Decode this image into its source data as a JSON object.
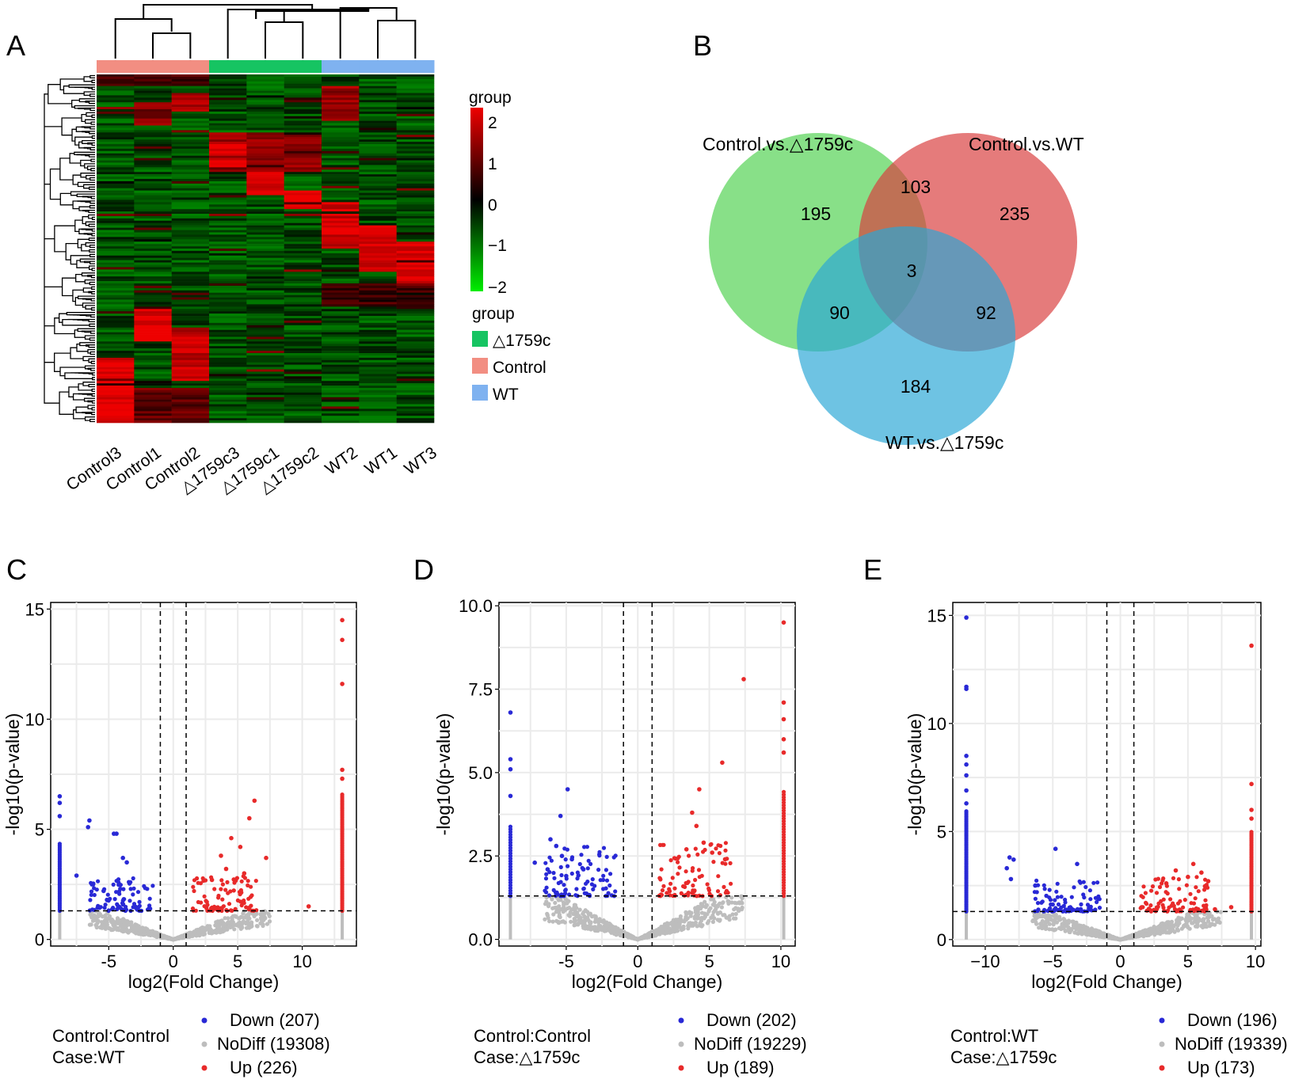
{
  "panel_labels": [
    "A",
    "B",
    "C",
    "D",
    "E"
  ],
  "chart_data": [
    {
      "panel": "A",
      "type": "heatmap",
      "samples": [
        "Control3",
        "Control1",
        "Control2",
        "△1759c3",
        "△1759c1",
        "△1759c2",
        "WT2",
        "WT1",
        "WT3"
      ],
      "sample_groups": [
        "Control",
        "Control",
        "Control",
        "△1759c",
        "△1759c",
        "△1759c",
        "WT",
        "WT",
        "WT"
      ],
      "scale": {
        "title": "group",
        "min": -2,
        "max": 2,
        "ticks": [
          "2",
          "1",
          "0",
          "−1",
          "−2"
        ],
        "colors": [
          "#00ee00",
          "#000000",
          "#ee0000"
        ]
      },
      "legend": {
        "title": "group",
        "items": [
          {
            "label": "△1759c",
            "color": "#16c462"
          },
          {
            "label": "Control",
            "color": "#f28e82"
          },
          {
            "label": "WT",
            "color": "#7fb2f0"
          }
        ]
      }
    },
    {
      "panel": "B",
      "type": "venn",
      "sets": [
        {
          "name": "Control.vs.△1759c",
          "color": "#4fd24f"
        },
        {
          "name": "Control.vs.WT",
          "color": "#d83c3c"
        },
        {
          "name": "WT.vs.△1759c",
          "color": "#2aa6d6"
        }
      ],
      "regions": {
        "only_ctrl_d1759c": "195",
        "only_ctrl_wt": "235",
        "only_wt_d1759c": "184",
        "ctrl_d1759c_and_ctrl_wt": "103",
        "ctrl_d1759c_and_wt_d1759c": "90",
        "ctrl_wt_and_wt_d1759c": "92",
        "all_three": "3"
      }
    },
    {
      "panel": "C",
      "type": "scatter",
      "xlabel": "log2(Fold Change)",
      "ylabel": "-log10(p-value)",
      "xlim": [
        -9.5,
        14.2
      ],
      "ylim": [
        -0.3,
        15.3
      ],
      "xticks": [
        "-5",
        "0",
        "5",
        "10"
      ],
      "xtick_values": [
        -5,
        0,
        5,
        10
      ],
      "yticks": [
        "0",
        "5",
        "10",
        "15"
      ],
      "ytick_values": [
        0,
        5,
        10,
        15
      ],
      "vlines": [
        -1,
        1
      ],
      "hline": 1.3,
      "control_label": "Control:Control",
      "case_label": "Case:WT",
      "legend": [
        {
          "label": "Down (207)",
          "color": "#2929d6"
        },
        {
          "label": "NoDiff (19308)",
          "color": "#bdbdbd"
        },
        {
          "label": "Up (226)",
          "color": "#e82a2a"
        }
      ],
      "down_highlights": [
        [
          -8.8,
          6.5
        ],
        [
          -8.8,
          6.2
        ],
        [
          -8.8,
          5.6
        ],
        [
          -6.5,
          5.4
        ],
        [
          -6.6,
          5.1
        ],
        [
          -4.4,
          4.8
        ],
        [
          -4.6,
          4.8
        ],
        [
          -3.9,
          3.7
        ],
        [
          -3.6,
          3.5
        ],
        [
          -7.5,
          2.9
        ],
        [
          -6.3,
          2.5
        ],
        [
          -5.4,
          2.2
        ],
        [
          -4.1,
          2.3
        ]
      ],
      "up_highlights": [
        [
          13.1,
          14.5
        ],
        [
          13.1,
          13.6
        ],
        [
          13.1,
          11.6
        ],
        [
          13.1,
          7.7
        ],
        [
          13.1,
          7.3
        ],
        [
          6.3,
          6.3
        ],
        [
          5.9,
          5.5
        ],
        [
          4.5,
          4.6
        ],
        [
          5.2,
          4.2
        ],
        [
          3.7,
          3.8
        ],
        [
          7.2,
          3.7
        ],
        [
          4.1,
          3.2
        ],
        [
          5.5,
          3.0
        ],
        [
          10.5,
          1.5
        ],
        [
          3.0,
          2.7
        ]
      ],
      "edge_columns": {
        "down_x": -8.8,
        "up_x": 13.1,
        "down_top": 4.4,
        "up_top": 6.6
      }
    },
    {
      "panel": "D",
      "type": "scatter",
      "xlabel": "log2(Fold Change)",
      "ylabel": "-log10(p-value)",
      "xlim": [
        -9.7,
        11.0
      ],
      "ylim": [
        -0.2,
        10.1
      ],
      "xticks": [
        "-5",
        "0",
        "5",
        "10"
      ],
      "xtick_values": [
        -5,
        0,
        5,
        10
      ],
      "yticks": [
        "0.0",
        "2.5",
        "5.0",
        "7.5",
        "10.0"
      ],
      "ytick_values": [
        0,
        2.5,
        5,
        7.5,
        10
      ],
      "vlines": [
        -1,
        1
      ],
      "hline": 1.3,
      "control_label": "Control:Control",
      "case_label": "Case:△1759c",
      "legend": [
        {
          "label": "Down (202)",
          "color": "#2929d6"
        },
        {
          "label": "NoDiff (19229)",
          "color": "#bdbdbd"
        },
        {
          "label": "Up (189)",
          "color": "#e82a2a"
        }
      ],
      "down_highlights": [
        [
          -8.9,
          6.8
        ],
        [
          -8.9,
          5.4
        ],
        [
          -8.9,
          5.1
        ],
        [
          -8.9,
          4.3
        ],
        [
          -4.9,
          4.5
        ],
        [
          -5.4,
          3.7
        ],
        [
          -6.1,
          3.0
        ],
        [
          -5.7,
          2.8
        ],
        [
          -7.2,
          2.3
        ],
        [
          -5.3,
          2.5
        ],
        [
          -4.6,
          2.4
        ],
        [
          -3.8,
          2.1
        ],
        [
          -5.0,
          1.9
        ],
        [
          -6.3,
          2.1
        ]
      ],
      "up_highlights": [
        [
          10.2,
          9.5
        ],
        [
          7.4,
          7.8
        ],
        [
          10.2,
          7.1
        ],
        [
          10.2,
          6.6
        ],
        [
          10.2,
          6.0
        ],
        [
          10.2,
          5.6
        ],
        [
          5.9,
          5.3
        ],
        [
          4.3,
          4.5
        ],
        [
          3.8,
          3.8
        ],
        [
          4.1,
          3.4
        ],
        [
          5.2,
          2.6
        ],
        [
          6.1,
          2.4
        ],
        [
          3.4,
          2.7
        ],
        [
          4.6,
          2.9
        ]
      ],
      "edge_columns": {
        "down_x": -8.9,
        "up_x": 10.2,
        "down_top": 3.4,
        "up_top": 4.5
      }
    },
    {
      "panel": "E",
      "type": "scatter",
      "xlabel": "log2(Fold Change)",
      "ylabel": "-log10(p-value)",
      "xlim": [
        -12.4,
        10.4
      ],
      "ylim": [
        -0.3,
        15.6
      ],
      "xticks": [
        "−10",
        "−5",
        "0",
        "5",
        "10"
      ],
      "xtick_values": [
        -10,
        -5,
        0,
        5,
        10
      ],
      "yticks": [
        "0",
        "5",
        "10",
        "15"
      ],
      "ytick_values": [
        0,
        5,
        10,
        15
      ],
      "vlines": [
        -1,
        1
      ],
      "hline": 1.3,
      "control_label": "Control:WT",
      "case_label": "Case:△1759c",
      "legend": [
        {
          "label": "Down (196)",
          "color": "#2929d6"
        },
        {
          "label": "NoDiff (19339)",
          "color": "#bdbdbd"
        },
        {
          "label": "Up (173)",
          "color": "#e82a2a"
        }
      ],
      "down_highlights": [
        [
          -11.4,
          14.9
        ],
        [
          -11.4,
          11.7
        ],
        [
          -11.4,
          11.6
        ],
        [
          -11.4,
          8.5
        ],
        [
          -11.4,
          8.1
        ],
        [
          -11.4,
          7.6
        ],
        [
          -11.4,
          6.9
        ],
        [
          -11.4,
          6.3
        ],
        [
          -8.2,
          3.8
        ],
        [
          -7.9,
          3.7
        ],
        [
          -8.4,
          3.3
        ],
        [
          -8.1,
          2.8
        ],
        [
          -4.8,
          4.2
        ],
        [
          -3.2,
          3.5
        ],
        [
          -6.3,
          2.5
        ]
      ],
      "up_highlights": [
        [
          9.7,
          13.6
        ],
        [
          9.7,
          7.2
        ],
        [
          9.7,
          6.0
        ],
        [
          9.7,
          5.6
        ],
        [
          5.4,
          3.5
        ],
        [
          6.0,
          3.1
        ],
        [
          6.5,
          2.7
        ],
        [
          4.1,
          3.2
        ],
        [
          5.0,
          2.9
        ],
        [
          3.4,
          2.6
        ],
        [
          8.2,
          1.5
        ],
        [
          7.0,
          1.4
        ]
      ],
      "edge_columns": {
        "down_x": -11.4,
        "up_x": 9.7,
        "down_top": 6.0,
        "up_top": 5.0
      }
    }
  ]
}
